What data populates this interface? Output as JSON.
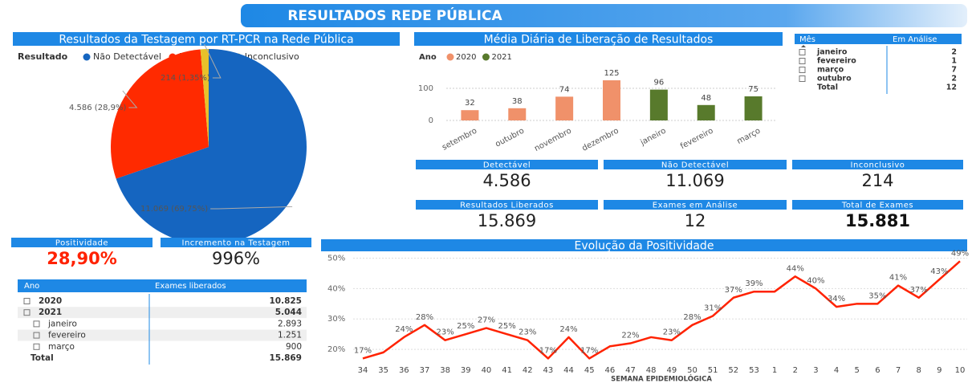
{
  "header": {
    "title": "RESULTADOS REDE PÚBLICA"
  },
  "chart_data": [
    {
      "type": "pie",
      "title": "Resultados da Testagem por RT-PCR na Rede Pública",
      "legend_title": "Resultado",
      "categories": [
        "Não Detectável",
        "Detectável",
        "Inconclusivo"
      ],
      "values": [
        11069,
        4586,
        214
      ],
      "value_labels": [
        "11.069 (69,75%)",
        "4.586 (28,9%)",
        "214 (1,35%)"
      ],
      "colors": [
        "#1565c0",
        "#ff2a00",
        "#e8c12a"
      ]
    },
    {
      "type": "bar",
      "title": "Média Diária de Liberação de Resultados",
      "legend_title": "Ano",
      "categories": [
        "setembro",
        "outubro",
        "novembro",
        "dezembro",
        "janeiro",
        "fevereiro",
        "março"
      ],
      "series": [
        {
          "name": "2020",
          "color": "#f0916a",
          "values": [
            32,
            38,
            74,
            125,
            null,
            null,
            null
          ]
        },
        {
          "name": "2021",
          "color": "#587a2c",
          "values": [
            null,
            null,
            null,
            null,
            96,
            48,
            75
          ]
        }
      ],
      "ylim": [
        0,
        130
      ],
      "yticks": [
        0,
        100
      ],
      "grid": true
    },
    {
      "type": "line",
      "title": "Evolução da Positividade",
      "x_label": "SEMANA EPIDEMIOLÓGICA",
      "categories": [
        "34",
        "35",
        "36",
        "37",
        "38",
        "39",
        "40",
        "41",
        "42",
        "43",
        "44",
        "45",
        "46",
        "47",
        "48",
        "49",
        "50",
        "51",
        "52",
        "53",
        "1",
        "2",
        "3",
        "4",
        "5",
        "6",
        "7",
        "8",
        "9",
        "10"
      ],
      "values": [
        17,
        19,
        24,
        28,
        23,
        25,
        27,
        25,
        23,
        17,
        24,
        17,
        21,
        22,
        24,
        23,
        28,
        31,
        37,
        39,
        39,
        44,
        40,
        34,
        35,
        35,
        41,
        37,
        43,
        49
      ],
      "value_labels": [
        "17%",
        null,
        "24%",
        "28%",
        "23%",
        "25%",
        "27%",
        "25%",
        "23%",
        "17%",
        "24%",
        "17%",
        null,
        "22%",
        null,
        "23%",
        "28%",
        "31%",
        "37%",
        "39%",
        null,
        "44%",
        "40%",
        "34%",
        null,
        "35%",
        "41%",
        "37%",
        "43%",
        "49%"
      ],
      "color": "#ff2200",
      "ylim": [
        15,
        52
      ],
      "yticks": [
        {
          "value": 20,
          "label": "20%"
        },
        {
          "value": 30,
          "label": "30%"
        },
        {
          "value": 40,
          "label": "40%"
        },
        {
          "value": 50,
          "label": "50%"
        }
      ],
      "grid": true
    }
  ],
  "cards": [
    {
      "title": "Detectável",
      "value": "4.586"
    },
    {
      "title": "Não Detectável",
      "value": "11.069"
    },
    {
      "title": "Inconclusivo",
      "value": "214"
    },
    {
      "title": "Resultados Liberados",
      "value": "15.869"
    },
    {
      "title": "Exames em Análise",
      "value": "12"
    },
    {
      "title": "Total de Exames",
      "value": "15.881"
    },
    {
      "title": "Positividade",
      "value": "28,90%"
    },
    {
      "title": "Incremento na Testagem",
      "value": "996%"
    }
  ],
  "month_table": {
    "columns": [
      "Mês",
      "Em Análise"
    ],
    "rows": [
      [
        "janeiro",
        "2"
      ],
      [
        "fevereiro",
        "1"
      ],
      [
        "março",
        "7"
      ],
      [
        "outubro",
        "2"
      ],
      [
        "Total",
        "12"
      ]
    ]
  },
  "year_table": {
    "columns": [
      "Ano",
      "Exames liberados"
    ],
    "rows": [
      [
        "2020",
        "10.825"
      ],
      [
        "2021",
        "5.044"
      ],
      [
        "janeiro",
        "2.893"
      ],
      [
        "fevereiro",
        "1.251"
      ],
      [
        "março",
        "900"
      ],
      [
        "Total",
        "15.869"
      ]
    ]
  }
}
